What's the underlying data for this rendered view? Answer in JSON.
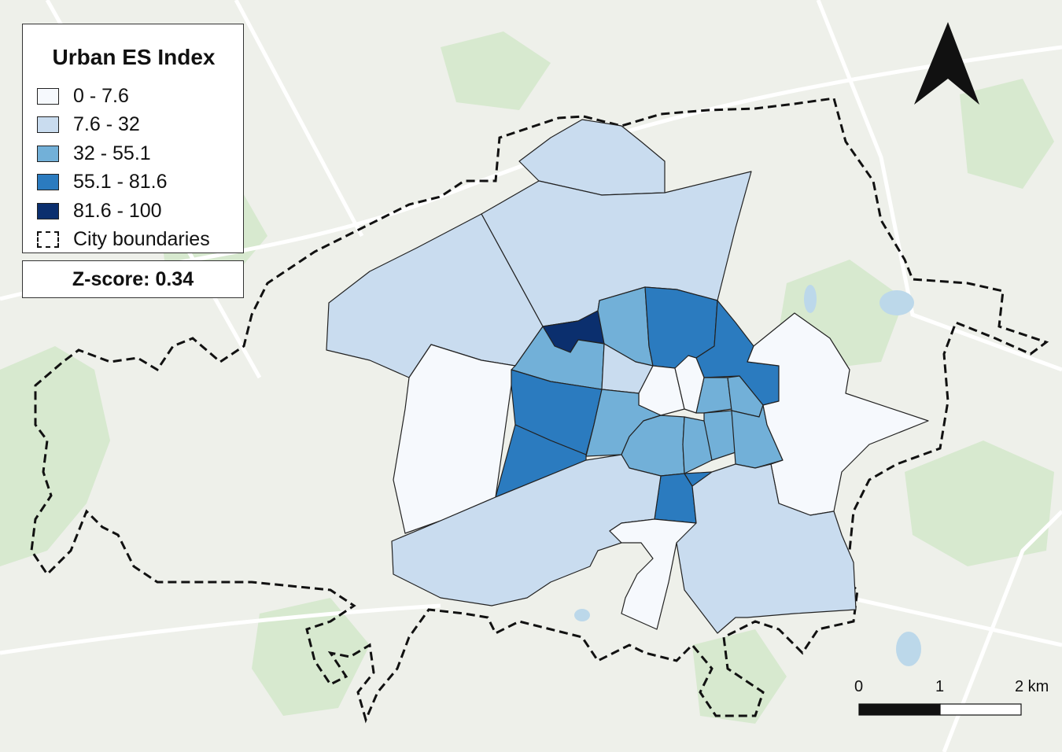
{
  "legend": {
    "title": "Urban ES Index",
    "classes": [
      {
        "label": "0 - 7.6",
        "color": "#f6f9fd"
      },
      {
        "label": "7.6 - 32",
        "color": "#c9dcef"
      },
      {
        "label": "32 - 55.1",
        "color": "#72b0d8"
      },
      {
        "label": "55.1 - 81.6",
        "color": "#2b7bbf"
      },
      {
        "label": "81.6 - 100",
        "color": "#0b2f6e"
      }
    ],
    "boundary_label": "City boundaries"
  },
  "zscore_label": "Z-score: 0.34",
  "scale_bar": {
    "labels": [
      "0",
      "1",
      "2 km"
    ]
  },
  "north_arrow": "north-arrow-icon",
  "colors": {
    "basemap": "#eef0ea",
    "green": "#cfe6c6",
    "road": "#ffffff",
    "water": "#bcd8ea",
    "outline": "#222222"
  }
}
